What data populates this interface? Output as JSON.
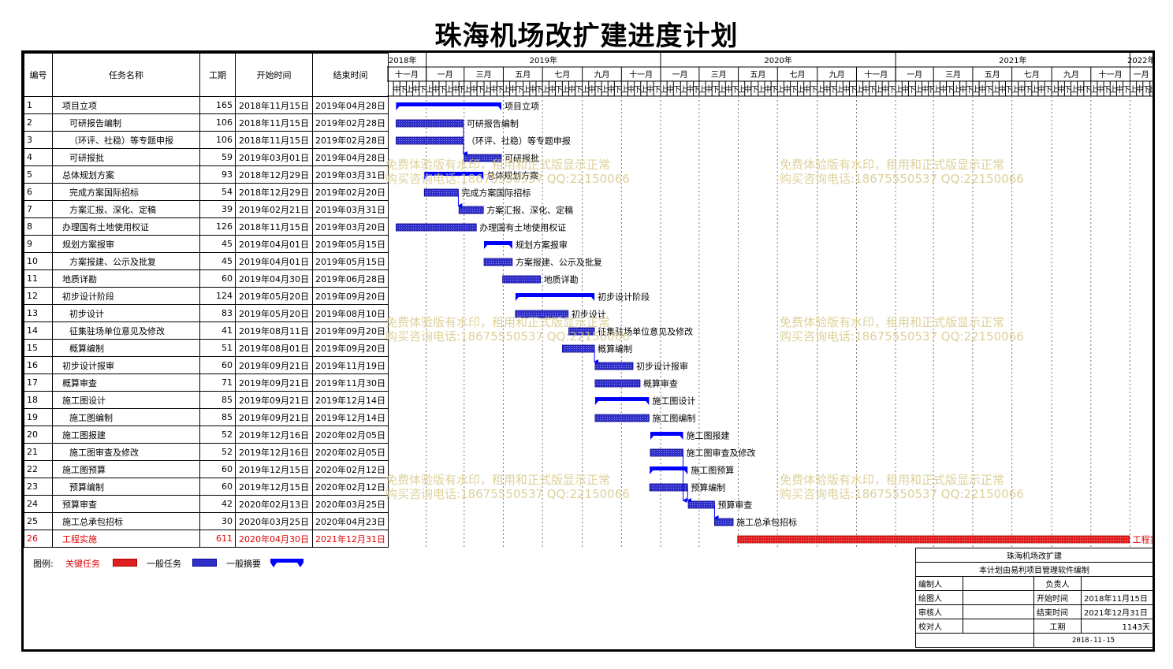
{
  "page": {
    "title": "珠海机场改扩建进度计划"
  },
  "table": {
    "headers": {
      "id": "编号",
      "name": "任务名称",
      "duration": "工期",
      "start": "开始时间",
      "end": "结束时间"
    }
  },
  "timescale": {
    "years": [
      "2018年",
      "2019年",
      "2020年",
      "2021年",
      "2022年"
    ],
    "months": [
      "十一月",
      "一月",
      "三月",
      "五月",
      "七月",
      "九月",
      "十一月",
      "一月",
      "三月",
      "五月",
      "七月",
      "九月",
      "十一月",
      "一月",
      "三月",
      "五月",
      "七月",
      "九月",
      "十一月",
      "一月"
    ],
    "periods": [
      "中",
      "上",
      "下"
    ]
  },
  "chart_data": {
    "type": "gantt",
    "title": "珠海机场改扩建进度计划",
    "time_range": [
      "2018-11-01",
      "2022-02-05"
    ],
    "tasks": [
      {
        "id": "1",
        "name": "项目立项",
        "duration": "165",
        "start_label": "2018年11月15日",
        "end_label": "2019年04月28日",
        "start": "2018-11-15",
        "end": "2019-04-28",
        "kind": "summary",
        "indent": 0
      },
      {
        "id": "2",
        "name": "可研报告编制",
        "duration": "106",
        "start_label": "2018年11月15日",
        "end_label": "2019年02月28日",
        "start": "2018-11-15",
        "end": "2019-02-28",
        "kind": "task",
        "indent": 1
      },
      {
        "id": "3",
        "name": "（环评、社稳）等专题申报",
        "duration": "106",
        "start_label": "2018年11月15日",
        "end_label": "2019年02月28日",
        "start": "2018-11-15",
        "end": "2019-02-28",
        "kind": "task",
        "indent": 1
      },
      {
        "id": "4",
        "name": "可研报批",
        "duration": "59",
        "start_label": "2019年03月01日",
        "end_label": "2019年04月28日",
        "start": "2019-03-01",
        "end": "2019-04-28",
        "kind": "task",
        "indent": 1
      },
      {
        "id": "5",
        "name": "总体规划方案",
        "duration": "93",
        "start_label": "2018年12月29日",
        "end_label": "2019年03月31日",
        "start": "2018-12-29",
        "end": "2019-03-31",
        "kind": "summary",
        "indent": 0
      },
      {
        "id": "6",
        "name": "完成方案国际招标",
        "duration": "54",
        "start_label": "2018年12月29日",
        "end_label": "2019年02月20日",
        "start": "2018-12-29",
        "end": "2019-02-20",
        "kind": "task",
        "indent": 1
      },
      {
        "id": "7",
        "name": "方案汇报、深化、定稿",
        "duration": "39",
        "start_label": "2019年02月21日",
        "end_label": "2019年03月31日",
        "start": "2019-02-21",
        "end": "2019-03-31",
        "kind": "task",
        "indent": 1
      },
      {
        "id": "8",
        "name": "办理国有土地使用权证",
        "duration": "126",
        "start_label": "2018年11月15日",
        "end_label": "2019年03月20日",
        "start": "2018-11-15",
        "end": "2019-03-20",
        "kind": "task",
        "indent": 0
      },
      {
        "id": "9",
        "name": "规划方案报审",
        "duration": "45",
        "start_label": "2019年04月01日",
        "end_label": "2019年05月15日",
        "start": "2019-04-01",
        "end": "2019-05-15",
        "kind": "summary",
        "indent": 0
      },
      {
        "id": "10",
        "name": "方案报建、公示及批复",
        "duration": "45",
        "start_label": "2019年04月01日",
        "end_label": "2019年05月15日",
        "start": "2019-04-01",
        "end": "2019-05-15",
        "kind": "task",
        "indent": 1
      },
      {
        "id": "11",
        "name": "地质详勘",
        "duration": "60",
        "start_label": "2019年04月30日",
        "end_label": "2019年06月28日",
        "start": "2019-04-30",
        "end": "2019-06-28",
        "kind": "task",
        "indent": 0
      },
      {
        "id": "12",
        "name": "初步设计阶段",
        "duration": "124",
        "start_label": "2019年05月20日",
        "end_label": "2019年09月20日",
        "start": "2019-05-20",
        "end": "2019-09-20",
        "kind": "summary",
        "indent": 0
      },
      {
        "id": "13",
        "name": "初步设计",
        "duration": "83",
        "start_label": "2019年05月20日",
        "end_label": "2019年08月10日",
        "start": "2019-05-20",
        "end": "2019-08-10",
        "kind": "task",
        "indent": 1
      },
      {
        "id": "14",
        "name": "征集驻场单位意见及修改",
        "duration": "41",
        "start_label": "2019年08月11日",
        "end_label": "2019年09月20日",
        "start": "2019-08-11",
        "end": "2019-09-20",
        "kind": "task",
        "indent": 1
      },
      {
        "id": "15",
        "name": "概算编制",
        "duration": "51",
        "start_label": "2019年08月01日",
        "end_label": "2019年09月20日",
        "start": "2019-08-01",
        "end": "2019-09-20",
        "kind": "task",
        "indent": 1
      },
      {
        "id": "16",
        "name": "初步设计报审",
        "duration": "60",
        "start_label": "2019年09月21日",
        "end_label": "2019年11月19日",
        "start": "2019-09-21",
        "end": "2019-11-19",
        "kind": "task",
        "indent": 0
      },
      {
        "id": "17",
        "name": "概算审查",
        "duration": "71",
        "start_label": "2019年09月21日",
        "end_label": "2019年11月30日",
        "start": "2019-09-21",
        "end": "2019-11-30",
        "kind": "task",
        "indent": 0
      },
      {
        "id": "18",
        "name": "施工图设计",
        "duration": "85",
        "start_label": "2019年09月21日",
        "end_label": "2019年12月14日",
        "start": "2019-09-21",
        "end": "2019-12-14",
        "kind": "summary",
        "indent": 0
      },
      {
        "id": "19",
        "name": "施工图编制",
        "duration": "85",
        "start_label": "2019年09月21日",
        "end_label": "2019年12月14日",
        "start": "2019-09-21",
        "end": "2019-12-14",
        "kind": "task",
        "indent": 1
      },
      {
        "id": "20",
        "name": "施工图报建",
        "duration": "52",
        "start_label": "2019年12月16日",
        "end_label": "2020年02月05日",
        "start": "2019-12-16",
        "end": "2020-02-05",
        "kind": "summary",
        "indent": 0
      },
      {
        "id": "21",
        "name": "施工图审查及修改",
        "duration": "52",
        "start_label": "2019年12月16日",
        "end_label": "2020年02月05日",
        "start": "2019-12-16",
        "end": "2020-02-05",
        "kind": "task",
        "indent": 1
      },
      {
        "id": "22",
        "name": "施工图预算",
        "duration": "60",
        "start_label": "2019年12月15日",
        "end_label": "2020年02月12日",
        "start": "2019-12-15",
        "end": "2020-02-12",
        "kind": "summary",
        "indent": 0
      },
      {
        "id": "23",
        "name": "预算编制",
        "duration": "60",
        "start_label": "2019年12月15日",
        "end_label": "2020年02月12日",
        "start": "2019-12-15",
        "end": "2020-02-12",
        "kind": "task",
        "indent": 1
      },
      {
        "id": "24",
        "name": "预算审查",
        "duration": "42",
        "start_label": "2020年02月13日",
        "end_label": "2020年03月25日",
        "start": "2020-02-13",
        "end": "2020-03-25",
        "kind": "task",
        "indent": 0
      },
      {
        "id": "25",
        "name": "施工总承包招标",
        "duration": "30",
        "start_label": "2020年03月25日",
        "end_label": "2020年04月23日",
        "start": "2020-03-25",
        "end": "2020-04-23",
        "kind": "task",
        "indent": 0
      },
      {
        "id": "26",
        "name": "工程实施",
        "duration": "611",
        "start_label": "2020年04月30日",
        "end_label": "2021年12月31日",
        "start": "2020-04-30",
        "end": "2021-12-31",
        "kind": "critical",
        "indent": 0
      }
    ],
    "links": [
      [
        "2",
        "4"
      ],
      [
        "3",
        "4"
      ],
      [
        "6",
        "7"
      ],
      [
        "15",
        "16"
      ],
      [
        "21",
        "24"
      ],
      [
        "23",
        "24"
      ],
      [
        "24",
        "25"
      ]
    ],
    "colors": {
      "task": "#3030c8",
      "summary": "#0000ff",
      "critical": "#e02020",
      "link": "#0000ff"
    }
  },
  "legend": {
    "label": "图例:",
    "critical": "关键任务",
    "task": "一般任务",
    "summary": "一般摘要"
  },
  "info": {
    "project": "珠海机场改扩建",
    "note": "本计划由易利项目管理软件编制",
    "editor_label": "编制人",
    "owner_label": "负责人",
    "drawer_label": "绘图人",
    "start_label": "开始时间",
    "start_value": "2018年11月15日",
    "reviewer_label": "审核人",
    "end_label": "结束时间",
    "end_value": "2021年12月31日",
    "checker_label": "校对人",
    "duration_label": "工期",
    "duration_value": "1143天",
    "date": "2018-11-15"
  },
  "watermark": {
    "line1": "免费体验版有水印，租用和正式版显示正常",
    "line2": "购买咨询电话:18675550537 QQ:22150066"
  }
}
